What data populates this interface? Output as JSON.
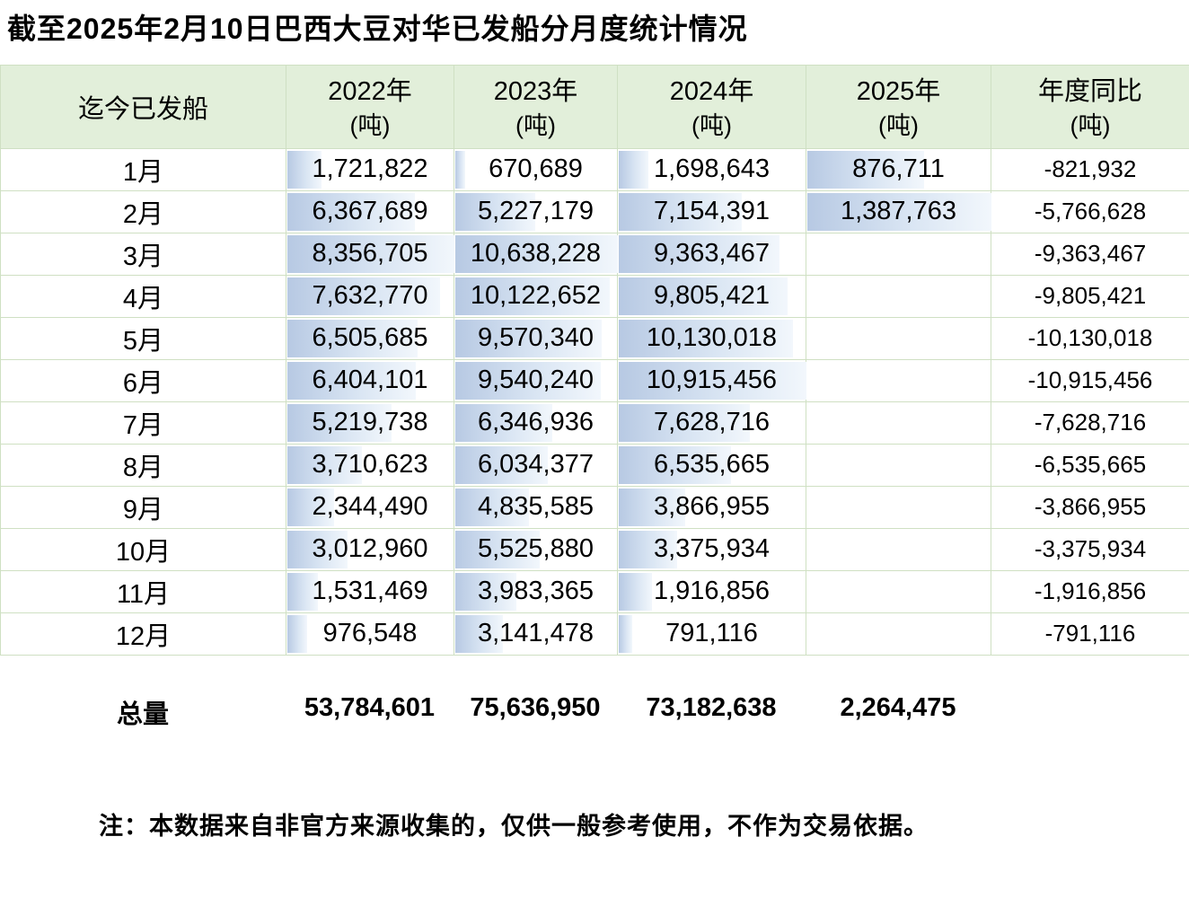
{
  "title": "截至2025年2月10日巴西大豆对华已发船分月度统计情况",
  "header": {
    "cols": [
      {
        "label": "迄今已发船",
        "unit": ""
      },
      {
        "label": "2022年",
        "unit": "(吨)"
      },
      {
        "label": "2023年",
        "unit": "(吨)"
      },
      {
        "label": "2024年",
        "unit": "(吨)"
      },
      {
        "label": "2025年",
        "unit": "(吨)"
      },
      {
        "label": "年度同比",
        "unit": "(吨)"
      }
    ]
  },
  "rows": [
    {
      "m": "1月",
      "y2022": "1,721,822",
      "y2023": "670,689",
      "y2024": "1,698,643",
      "y2025": "876,711",
      "yoy": "-821,932"
    },
    {
      "m": "2月",
      "y2022": "6,367,689",
      "y2023": "5,227,179",
      "y2024": "7,154,391",
      "y2025": "1,387,763",
      "yoy": "-5,766,628"
    },
    {
      "m": "3月",
      "y2022": "8,356,705",
      "y2023": "10,638,228",
      "y2024": "9,363,467",
      "y2025": "",
      "yoy": "-9,363,467"
    },
    {
      "m": "4月",
      "y2022": "7,632,770",
      "y2023": "10,122,652",
      "y2024": "9,805,421",
      "y2025": "",
      "yoy": "-9,805,421"
    },
    {
      "m": "5月",
      "y2022": "6,505,685",
      "y2023": "9,570,340",
      "y2024": "10,130,018",
      "y2025": "",
      "yoy": "-10,130,018"
    },
    {
      "m": "6月",
      "y2022": "6,404,101",
      "y2023": "9,540,240",
      "y2024": "10,915,456",
      "y2025": "",
      "yoy": "-10,915,456"
    },
    {
      "m": "7月",
      "y2022": "5,219,738",
      "y2023": "6,346,936",
      "y2024": "7,628,716",
      "y2025": "",
      "yoy": "-7,628,716"
    },
    {
      "m": "8月",
      "y2022": "3,710,623",
      "y2023": "6,034,377",
      "y2024": "6,535,665",
      "y2025": "",
      "yoy": "-6,535,665"
    },
    {
      "m": "9月",
      "y2022": "2,344,490",
      "y2023": "4,835,585",
      "y2024": "3,866,955",
      "y2025": "",
      "yoy": "-3,866,955"
    },
    {
      "m": "10月",
      "y2022": "3,012,960",
      "y2023": "5,525,880",
      "y2024": "3,375,934",
      "y2025": "",
      "yoy": "-3,375,934"
    },
    {
      "m": "11月",
      "y2022": "1,531,469",
      "y2023": "3,983,365",
      "y2024": "1,916,856",
      "y2025": "",
      "yoy": "-1,916,856"
    },
    {
      "m": "12月",
      "y2022": "976,548",
      "y2023": "3,141,478",
      "y2024": "791,116",
      "y2025": "",
      "yoy": "-791,116"
    }
  ],
  "total": {
    "label": "总量",
    "y2022": "53,784,601",
    "y2023": "75,636,950",
    "y2024": "73,182,638",
    "y2025": "2,264,475",
    "yoy": ""
  },
  "note": "注：本数据来自非官方来源收集的，仅供一般参考使用，不作为交易依据。",
  "colors": {
    "header_bg": "#e2efda",
    "border": "#cfe0c3",
    "bar_start": "#b7c9e3",
    "bar_end": "#f2f7fc"
  },
  "chart_data": {
    "type": "table",
    "title": "截至2025年2月10日巴西大豆对华已发船分月度统计情况",
    "categories": [
      "1月",
      "2月",
      "3月",
      "4月",
      "5月",
      "6月",
      "7月",
      "8月",
      "9月",
      "10月",
      "11月",
      "12月"
    ],
    "series": [
      {
        "name": "2022年(吨)",
        "values": [
          1721822,
          6367689,
          8356705,
          7632770,
          6505685,
          6404101,
          5219738,
          3710623,
          2344490,
          3012960,
          1531469,
          976548
        ]
      },
      {
        "name": "2023年(吨)",
        "values": [
          670689,
          5227179,
          10638228,
          10122652,
          9570340,
          9540240,
          6346936,
          6034377,
          4835585,
          5525880,
          3983365,
          3141478
        ]
      },
      {
        "name": "2024年(吨)",
        "values": [
          1698643,
          7154391,
          9363467,
          9805421,
          10130018,
          10915456,
          7628716,
          6535665,
          3866955,
          3375934,
          1916856,
          791116
        ]
      },
      {
        "name": "2025年(吨)",
        "values": [
          876711,
          1387763,
          null,
          null,
          null,
          null,
          null,
          null,
          null,
          null,
          null,
          null
        ]
      },
      {
        "name": "年度同比(吨)",
        "values": [
          -821932,
          -5766628,
          -9363467,
          -9805421,
          -10130018,
          -10915456,
          -7628716,
          -6535665,
          -3866955,
          -3375934,
          -1916856,
          -791116
        ]
      }
    ],
    "totals": {
      "2022年": 53784601,
      "2023年": 75636950,
      "2024年": 73182638,
      "2025年": 2264475
    },
    "layout_hints": {
      "data_bars": "blue gradient bars per year column, zero-based, scaled to column max"
    }
  }
}
